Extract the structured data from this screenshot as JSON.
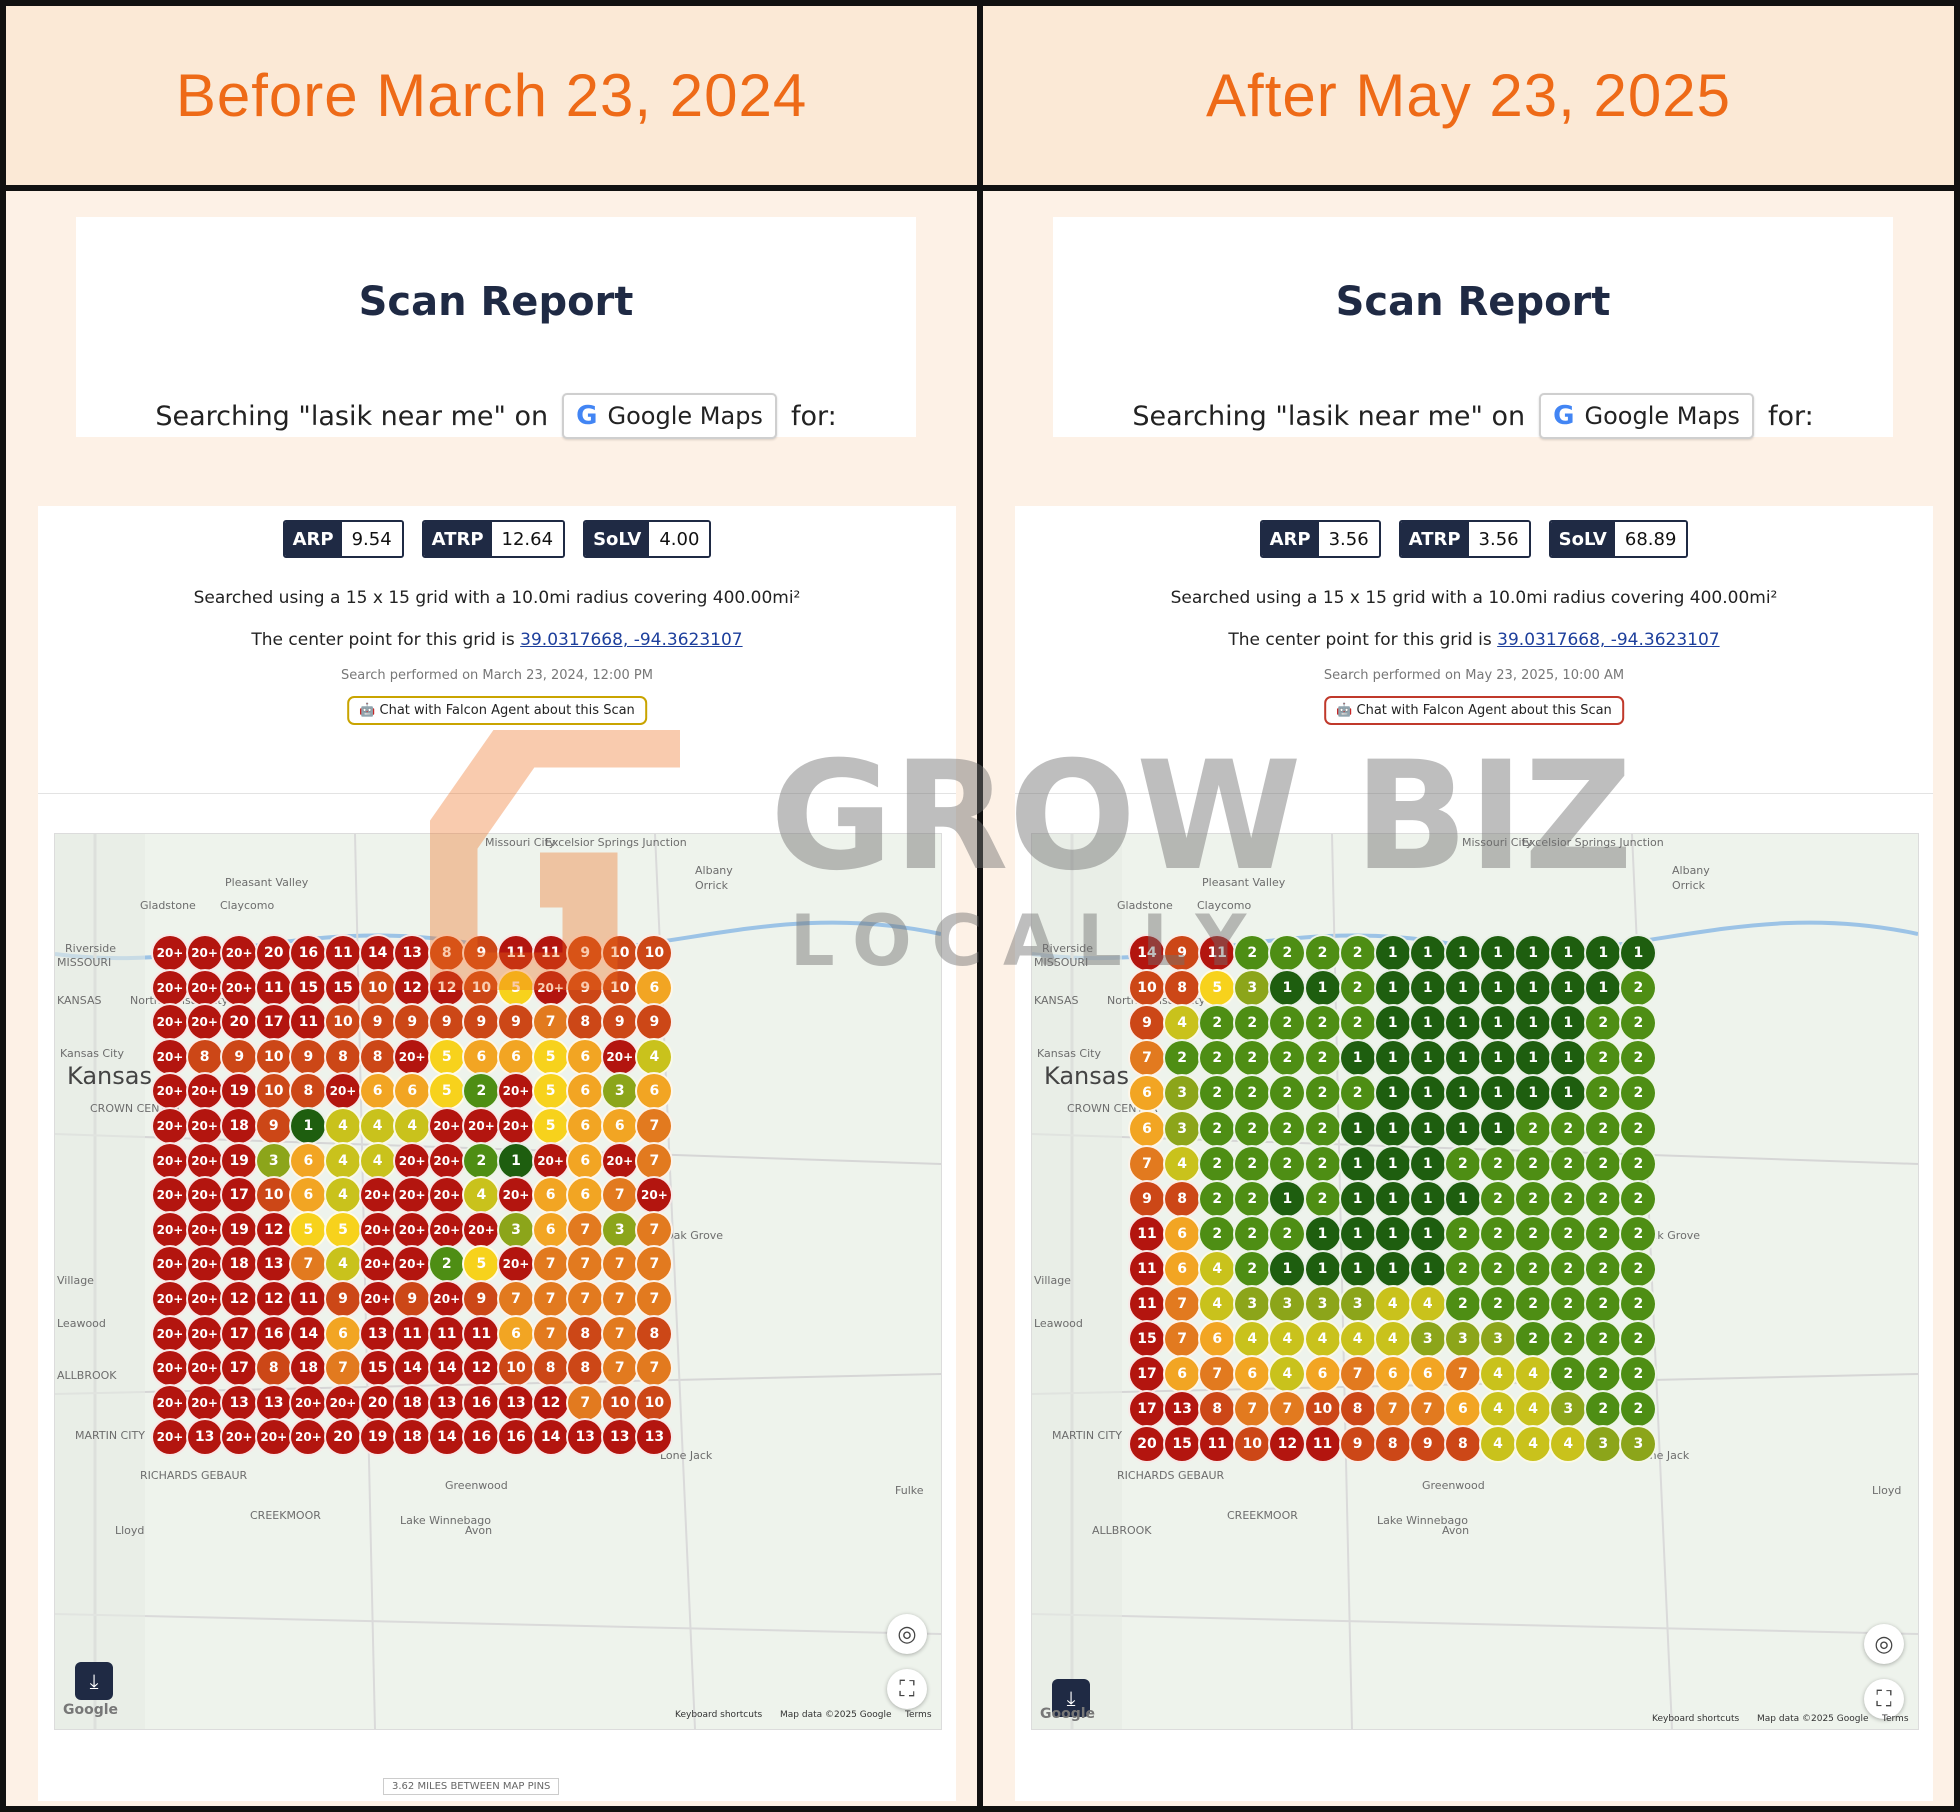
{
  "headers": {
    "left": "Before March 23, 2024",
    "right": "After May 23, 2025"
  },
  "left": {
    "report_title": "Scan Report",
    "search_prefix": "Searching \"lasik near me\" on",
    "platform": "Google Maps",
    "search_suffix": "for:",
    "badges": [
      {
        "k": "ARP",
        "v": "9.54"
      },
      {
        "k": "ATRP",
        "v": "12.64"
      },
      {
        "k": "SoLV",
        "v": "4.00"
      }
    ],
    "grid_line": "Searched using a 15 x 15 grid with a 10.0mi radius covering 400.00mi²",
    "center_prefix": "The center point for this grid is",
    "center_coord": "39.0317668, -94.3623107",
    "performed": "Search performed on March 23, 2024, 12:00 PM",
    "chat_button": "Chat with Falcon Agent about this Scan",
    "footer": "3.62 MILES BETWEEN MAP PINS",
    "grid": [
      [
        "20+",
        "20+",
        "20+",
        "20",
        "16",
        "11",
        "14",
        "13",
        "8",
        "9",
        "11",
        "11",
        "9",
        "10",
        "10"
      ],
      [
        "20+",
        "20+",
        "20+",
        "11",
        "15",
        "15",
        "10",
        "12",
        "12",
        "10",
        "5",
        "20+",
        "9",
        "10",
        "6"
      ],
      [
        "20+",
        "20+",
        "20",
        "17",
        "11",
        "10",
        "9",
        "9",
        "9",
        "9",
        "9",
        "7",
        "8",
        "9",
        "9"
      ],
      [
        "20+",
        "8",
        "9",
        "10",
        "9",
        "8",
        "8",
        "20+",
        "5",
        "6",
        "6",
        "5",
        "6",
        "20+",
        "4"
      ],
      [
        "20+",
        "20+",
        "19",
        "10",
        "8",
        "20+",
        "6",
        "6",
        "5",
        "2",
        "20+",
        "5",
        "6",
        "3",
        "6"
      ],
      [
        "20+",
        "20+",
        "18",
        "9",
        "1",
        "4",
        "4",
        "4",
        "20+",
        "20+",
        "20+",
        "5",
        "6",
        "6",
        "7"
      ],
      [
        "20+",
        "20+",
        "19",
        "3",
        "6",
        "4",
        "4",
        "20+",
        "20+",
        "2",
        "1",
        "20+",
        "6",
        "20+",
        "7"
      ],
      [
        "20+",
        "20+",
        "17",
        "10",
        "6",
        "4",
        "20+",
        "20+",
        "20+",
        "4",
        "20+",
        "6",
        "6",
        "7",
        "20+"
      ],
      [
        "20+",
        "20+",
        "19",
        "12",
        "5",
        "5",
        "20+",
        "20+",
        "20+",
        "20+",
        "3",
        "6",
        "7",
        "3",
        "7"
      ],
      [
        "20+",
        "20+",
        "18",
        "13",
        "7",
        "4",
        "20+",
        "20+",
        "2",
        "5",
        "20+",
        "7",
        "7",
        "7",
        "7"
      ],
      [
        "20+",
        "20+",
        "12",
        "12",
        "11",
        "9",
        "20+",
        "9",
        "20+",
        "9",
        "7",
        "7",
        "7",
        "7",
        "7"
      ],
      [
        "20+",
        "20+",
        "17",
        "16",
        "14",
        "6",
        "13",
        "11",
        "11",
        "11",
        "6",
        "7",
        "8",
        "7",
        "8"
      ],
      [
        "20+",
        "20+",
        "17",
        "8",
        "18",
        "7",
        "15",
        "14",
        "14",
        "12",
        "10",
        "8",
        "8",
        "7",
        "7"
      ],
      [
        "20+",
        "20+",
        "13",
        "13",
        "20+",
        "20+",
        "20",
        "18",
        "13",
        "16",
        "13",
        "12",
        "7",
        "10",
        "10"
      ],
      [
        "20+",
        "13",
        "20+",
        "20+",
        "20+",
        "20",
        "19",
        "18",
        "14",
        "16",
        "16",
        "14",
        "13",
        "13",
        "13"
      ]
    ],
    "places": [
      "Missouri City",
      "Excelsior Springs Junction",
      "Pleasant Valley",
      "Claycomo",
      "Gladstone",
      "Riverside",
      "MISSOURI",
      "KANSAS",
      "North Kansas City",
      "Kansas City",
      "Kansas",
      "CROWN CENTER",
      "Village",
      "Leawood",
      "Oak Grove",
      "Lone Jack",
      "Greenwood",
      "Lake Winnebago",
      "Avon",
      "MARTIN CITY",
      "RICHARDS GEBAUR",
      "CREEKMOOR",
      "Albany",
      "Orrick",
      "Fulke",
      "Lloyd",
      "ALLBROOK"
    ],
    "attribution": [
      "Keyboard shortcuts",
      "Map data ©2025 Google",
      "Terms"
    ],
    "google": "Google"
  },
  "right": {
    "report_title": "Scan Report",
    "search_prefix": "Searching \"lasik near me\" on",
    "platform": "Google Maps",
    "search_suffix": "for:",
    "badges": [
      {
        "k": "ARP",
        "v": "3.56"
      },
      {
        "k": "ATRP",
        "v": "3.56"
      },
      {
        "k": "SoLV",
        "v": "68.89"
      }
    ],
    "grid_line": "Searched using a 15 x 15 grid with a 10.0mi radius covering 400.00mi²",
    "center_prefix": "The center point for this grid is",
    "center_coord": "39.0317668, -94.3623107",
    "performed": "Search performed on May 23, 2025, 10:00 AM",
    "chat_button": "Chat with Falcon Agent about this Scan",
    "grid": [
      [
        "14",
        "9",
        "11",
        "2",
        "2",
        "2",
        "2",
        "1",
        "1",
        "1",
        "1",
        "1",
        "1",
        "1",
        "1"
      ],
      [
        "10",
        "8",
        "5",
        "3",
        "1",
        "1",
        "2",
        "1",
        "1",
        "1",
        "1",
        "1",
        "1",
        "1",
        "2"
      ],
      [
        "9",
        "4",
        "2",
        "2",
        "2",
        "2",
        "2",
        "1",
        "1",
        "1",
        "1",
        "1",
        "1",
        "2",
        "2"
      ],
      [
        "7",
        "2",
        "2",
        "2",
        "2",
        "2",
        "1",
        "1",
        "1",
        "1",
        "1",
        "1",
        "1",
        "2",
        "2"
      ],
      [
        "6",
        "3",
        "2",
        "2",
        "2",
        "2",
        "2",
        "1",
        "1",
        "1",
        "1",
        "1",
        "1",
        "2",
        "2"
      ],
      [
        "6",
        "3",
        "2",
        "2",
        "2",
        "2",
        "1",
        "1",
        "1",
        "1",
        "1",
        "2",
        "2",
        "2",
        "2"
      ],
      [
        "7",
        "4",
        "2",
        "2",
        "2",
        "2",
        "1",
        "1",
        "1",
        "2",
        "2",
        "2",
        "2",
        "2",
        "2"
      ],
      [
        "9",
        "8",
        "2",
        "2",
        "1",
        "2",
        "1",
        "1",
        "1",
        "1",
        "2",
        "2",
        "2",
        "2",
        "2"
      ],
      [
        "11",
        "6",
        "2",
        "2",
        "2",
        "1",
        "1",
        "1",
        "1",
        "2",
        "2",
        "2",
        "2",
        "2",
        "2"
      ],
      [
        "11",
        "6",
        "4",
        "2",
        "1",
        "1",
        "1",
        "1",
        "1",
        "2",
        "2",
        "2",
        "2",
        "2",
        "2"
      ],
      [
        "11",
        "7",
        "4",
        "3",
        "3",
        "3",
        "3",
        "4",
        "4",
        "2",
        "2",
        "2",
        "2",
        "2",
        "2"
      ],
      [
        "15",
        "7",
        "6",
        "4",
        "4",
        "4",
        "4",
        "4",
        "3",
        "3",
        "3",
        "2",
        "2",
        "2",
        "2"
      ],
      [
        "17",
        "6",
        "7",
        "6",
        "4",
        "6",
        "7",
        "6",
        "6",
        "7",
        "4",
        "4",
        "2",
        "2",
        "2"
      ],
      [
        "17",
        "13",
        "8",
        "7",
        "7",
        "10",
        "8",
        "7",
        "7",
        "6",
        "4",
        "4",
        "3",
        "2",
        "2"
      ],
      [
        "20",
        "15",
        "11",
        "10",
        "12",
        "11",
        "9",
        "8",
        "9",
        "8",
        "4",
        "4",
        "4",
        "3",
        "3"
      ]
    ],
    "places": [
      "Missouri City",
      "Excelsior Springs Junction",
      "Pleasant Valley",
      "Claycomo",
      "Gladstone",
      "Riverside",
      "MISSOURI",
      "KANSAS",
      "North Kansas City",
      "Kansas City",
      "Kansas",
      "CROWN CENTER",
      "Village",
      "Leawood",
      "Oak Grove",
      "Lone Jack",
      "Greenwood",
      "Lake Winnebago",
      "Avon",
      "MARTIN CITY",
      "RICHARDS GEBAUR",
      "CREEKMOOR",
      "Albany",
      "Orrick",
      "Lloyd",
      "ALLBROOK"
    ],
    "attribution": [
      "Keyboard shortcuts",
      "Map data ©2025 Google",
      "Terms"
    ],
    "google": "Google"
  },
  "watermark": {
    "line1": "GROW BIZ",
    "line2": "LOCALLY"
  },
  "colors": {
    "header_text": "#ee6a17",
    "rank_1": "#1e5e0f",
    "rank_2": "#4e8e14",
    "rank_3": "#8ca51a",
    "rank_4": "#c9c21c",
    "rank_5": "#f7d21c",
    "rank_6": "#f2a523",
    "rank_7": "#e27a1f",
    "rank_8_10": "#cc4717",
    "rank_11_plus": "#b3150f"
  }
}
